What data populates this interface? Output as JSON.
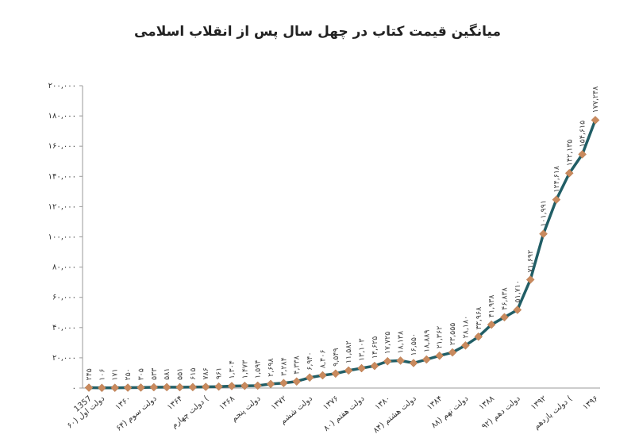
{
  "chart_data": {
    "type": "line",
    "title": "میانگین قیمت کتاب در چهل سال پس از انقلاب اسلامی",
    "categories": [
      "1357",
      "دولت اول (۶۰",
      null,
      "۱۳۶۰",
      null,
      "دولت سوم (۶۴",
      null,
      "۱۳۶۴",
      null,
      "دولت چهارم (",
      null,
      "۱۳۶۸",
      null,
      "دولت پنجم",
      null,
      "۱۳۷۲",
      null,
      "دولت ششم",
      null,
      "۱۳۷۶",
      null,
      "دولت هفتم (۸۰",
      null,
      "۱۳۸۰",
      null,
      "دولت هشتم (۸۴",
      null,
      "۱۳۸۴",
      null,
      "دولت نهم (۸۸",
      null,
      "۱۳۸۸",
      null,
      "دولت دهم (۹۲",
      null,
      "۱۳۹۲",
      null,
      "دولت یازدهم (",
      null,
      "۱۳۹۶"
    ],
    "values": [
      245,
      106,
      171,
      250,
      305,
      533,
      581,
      551,
      615,
      786,
      961,
      1304,
      1473,
      1594,
      2698,
      3284,
      4338,
      6940,
      8406,
      9549,
      11582,
      13103,
      14625,
      17725,
      18138,
      16550,
      18889,
      21362,
      23555,
      28180,
      33968,
      41938,
      46838,
      51710,
      71692,
      101991,
      124618,
      142135,
      154615,
      177248
    ],
    "value_labels": [
      "۲۴۵",
      "۱۰۶",
      "۱۷۱",
      "۲۵۰",
      "۳۰۵",
      "۵۳۳",
      "۵۸۱",
      "۵۵۱",
      "۶۱۵",
      "۷۸۶",
      "۹۶۱",
      "۱,۳۰۴",
      "۱,۴۷۳",
      "۱,۵۹۴",
      "۲,۶۹۸",
      "۳,۲۸۴",
      "۴,۳۳۸",
      "۶,۹۴۰",
      "۸,۴۰۶",
      "۹,۵۴۹",
      "۱۱,۵۸۲",
      "۱۳,۱۰۳",
      "۱۴,۶۲۵",
      "۱۷,۷۲۵",
      "۱۸,۱۳۸",
      "۱۶,۵۵۰",
      "۱۸,۸۸۹",
      "۲۱,۳۶۲",
      "۲۳,۵۵۵",
      "۲۸,۱۸۰",
      "۳۳,۹۶۸",
      "۴۱,۹۳۸",
      "۴۶,۸۳۸",
      "۵۱,۷۱۰",
      "۷۱,۶۹۲",
      "۱۰۱,۹۹۱",
      "۱۲۴,۶۱۸",
      "۱۴۲,۱۳۵",
      "۱۵۴,۶۱۵",
      "۱۷۷,۲۴۸"
    ],
    "color": "#215e66",
    "marker_color": "#c98a5e",
    "ylim": [
      0,
      200000
    ],
    "yticks": [
      {
        "value": 0,
        "label": "۰"
      },
      {
        "value": 20000,
        "label": "۲۰,۰۰۰"
      },
      {
        "value": 40000,
        "label": "۴۰,۰۰۰"
      },
      {
        "value": 60000,
        "label": "۶۰,۰۰۰"
      },
      {
        "value": 80000,
        "label": "۸۰,۰۰۰"
      },
      {
        "value": 100000,
        "label": "۱۰۰,۰۰۰"
      },
      {
        "value": 120000,
        "label": "۱۲۰,۰۰۰"
      },
      {
        "value": 140000,
        "label": "۱۴۰,۰۰۰"
      },
      {
        "value": 160000,
        "label": "۱۶۰,۰۰۰"
      },
      {
        "value": 180000,
        "label": "۱۸۰,۰۰۰"
      },
      {
        "value": 200000,
        "label": "۲۰۰,۰۰۰"
      }
    ]
  }
}
